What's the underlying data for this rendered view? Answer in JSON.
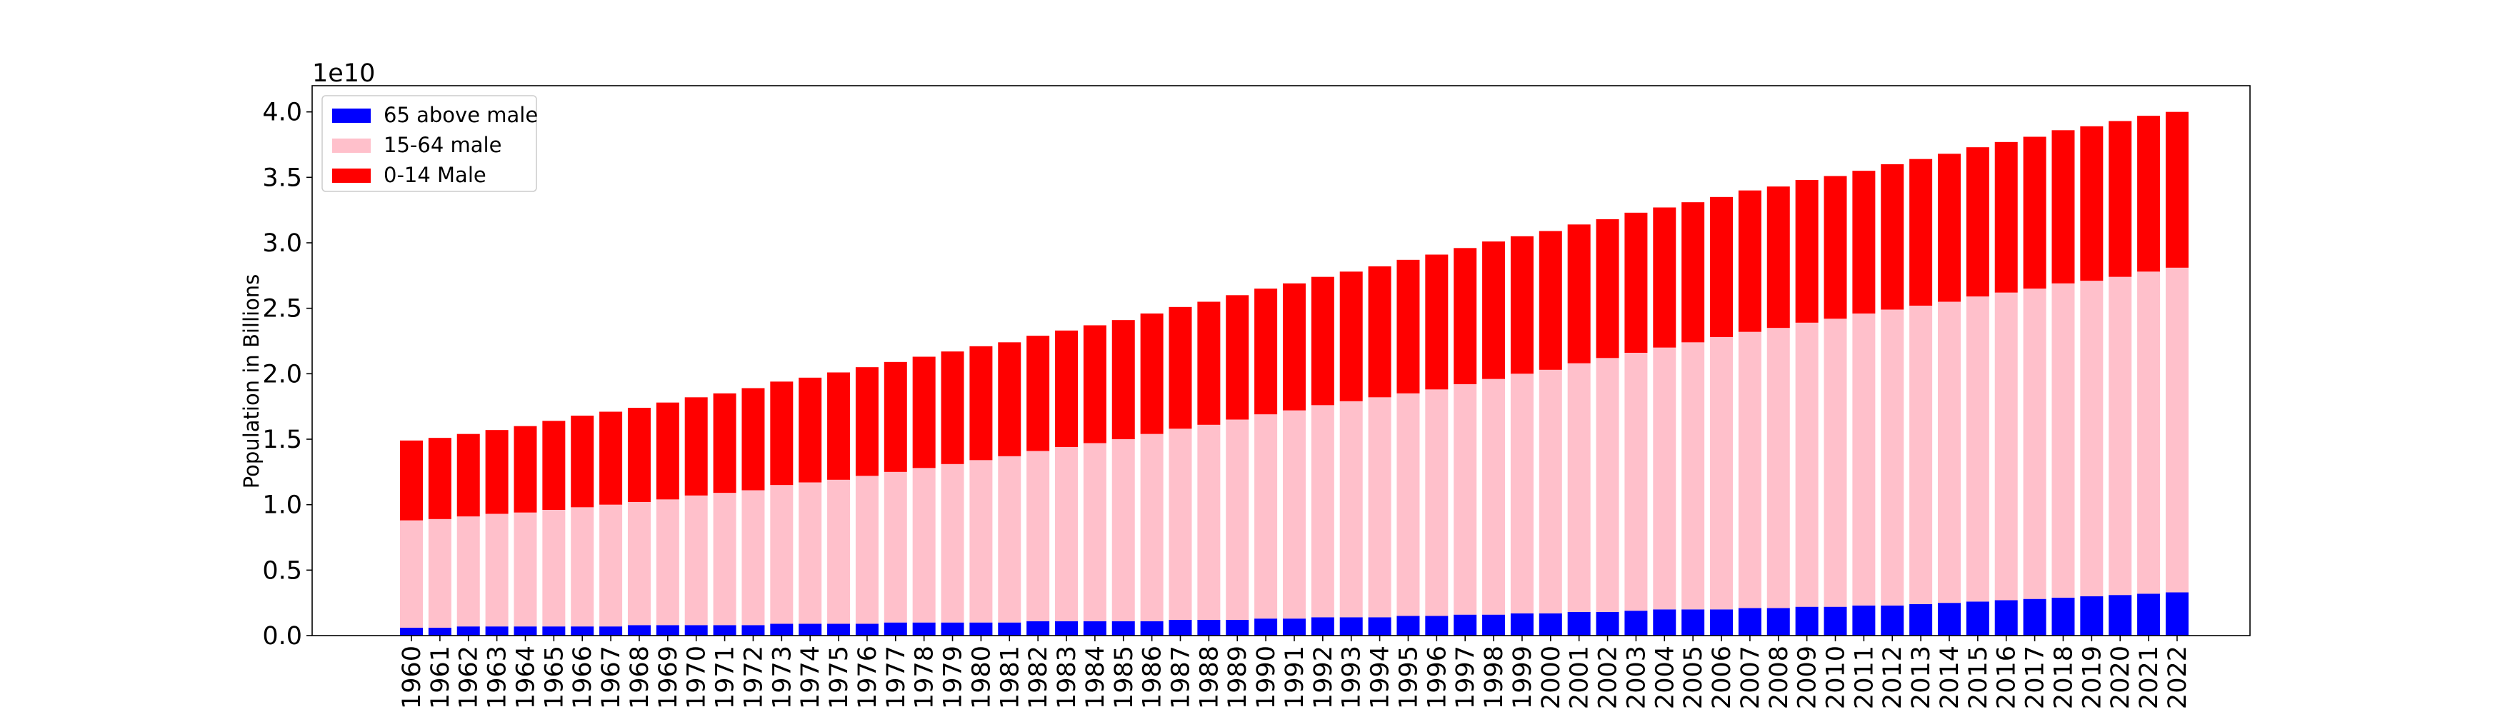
{
  "chart_data": {
    "type": "bar",
    "stacked": true,
    "title": "",
    "xlabel": "",
    "ylabel": "Population in Billions",
    "scale_label": "1e10",
    "ylim": [
      0,
      4.2
    ],
    "yticks": [
      "0.0",
      "0.5",
      "1.0",
      "1.5",
      "2.0",
      "2.5",
      "3.0",
      "3.5",
      "4.0"
    ],
    "legend_position": "upper-left",
    "grid": false,
    "categories": [
      "1960",
      "1961",
      "1962",
      "1963",
      "1964",
      "1965",
      "1966",
      "1967",
      "1968",
      "1969",
      "1970",
      "1971",
      "1972",
      "1973",
      "1974",
      "1975",
      "1976",
      "1977",
      "1978",
      "1979",
      "1980",
      "1981",
      "1982",
      "1983",
      "1984",
      "1985",
      "1986",
      "1987",
      "1988",
      "1989",
      "1990",
      "1991",
      "1992",
      "1993",
      "1994",
      "1995",
      "1996",
      "1997",
      "1998",
      "1999",
      "2000",
      "2001",
      "2002",
      "2003",
      "2004",
      "2005",
      "2006",
      "2007",
      "2008",
      "2009",
      "2010",
      "2011",
      "2012",
      "2013",
      "2014",
      "2015",
      "2016",
      "2017",
      "2018",
      "2019",
      "2020",
      "2021",
      "2022"
    ],
    "series": [
      {
        "name": "65 above male",
        "color": "#0000ff",
        "values": [
          0.06,
          0.06,
          0.07,
          0.07,
          0.07,
          0.07,
          0.07,
          0.07,
          0.08,
          0.08,
          0.08,
          0.08,
          0.08,
          0.09,
          0.09,
          0.09,
          0.09,
          0.1,
          0.1,
          0.1,
          0.1,
          0.1,
          0.11,
          0.11,
          0.11,
          0.11,
          0.11,
          0.12,
          0.12,
          0.12,
          0.13,
          0.13,
          0.14,
          0.14,
          0.14,
          0.15,
          0.15,
          0.16,
          0.16,
          0.17,
          0.17,
          0.18,
          0.18,
          0.19,
          0.2,
          0.2,
          0.2,
          0.21,
          0.21,
          0.22,
          0.22,
          0.23,
          0.23,
          0.24,
          0.25,
          0.26,
          0.27,
          0.28,
          0.29,
          0.3,
          0.31,
          0.32,
          0.33
        ]
      },
      {
        "name": "15-64 male",
        "color": "#ffc0cb",
        "values": [
          0.82,
          0.83,
          0.84,
          0.86,
          0.87,
          0.89,
          0.91,
          0.93,
          0.94,
          0.96,
          0.99,
          1.01,
          1.03,
          1.06,
          1.08,
          1.1,
          1.13,
          1.15,
          1.18,
          1.21,
          1.24,
          1.27,
          1.3,
          1.33,
          1.36,
          1.39,
          1.43,
          1.46,
          1.49,
          1.53,
          1.56,
          1.59,
          1.62,
          1.65,
          1.68,
          1.7,
          1.73,
          1.76,
          1.8,
          1.83,
          1.86,
          1.9,
          1.94,
          1.97,
          2.0,
          2.04,
          2.08,
          2.11,
          2.14,
          2.17,
          2.2,
          2.23,
          2.26,
          2.28,
          2.3,
          2.33,
          2.35,
          2.37,
          2.4,
          2.41,
          2.43,
          2.46,
          2.48
        ]
      },
      {
        "name": "0-14 Male",
        "color": "#ff0000",
        "values": [
          0.61,
          0.62,
          0.63,
          0.64,
          0.66,
          0.68,
          0.7,
          0.71,
          0.72,
          0.74,
          0.75,
          0.76,
          0.78,
          0.79,
          0.8,
          0.82,
          0.83,
          0.84,
          0.85,
          0.86,
          0.87,
          0.87,
          0.88,
          0.89,
          0.9,
          0.91,
          0.92,
          0.93,
          0.94,
          0.95,
          0.96,
          0.97,
          0.98,
          0.99,
          1.0,
          1.02,
          1.03,
          1.04,
          1.05,
          1.05,
          1.06,
          1.06,
          1.06,
          1.07,
          1.07,
          1.07,
          1.07,
          1.08,
          1.08,
          1.09,
          1.09,
          1.09,
          1.11,
          1.12,
          1.13,
          1.14,
          1.15,
          1.16,
          1.17,
          1.18,
          1.19,
          1.19,
          1.19
        ]
      }
    ]
  }
}
